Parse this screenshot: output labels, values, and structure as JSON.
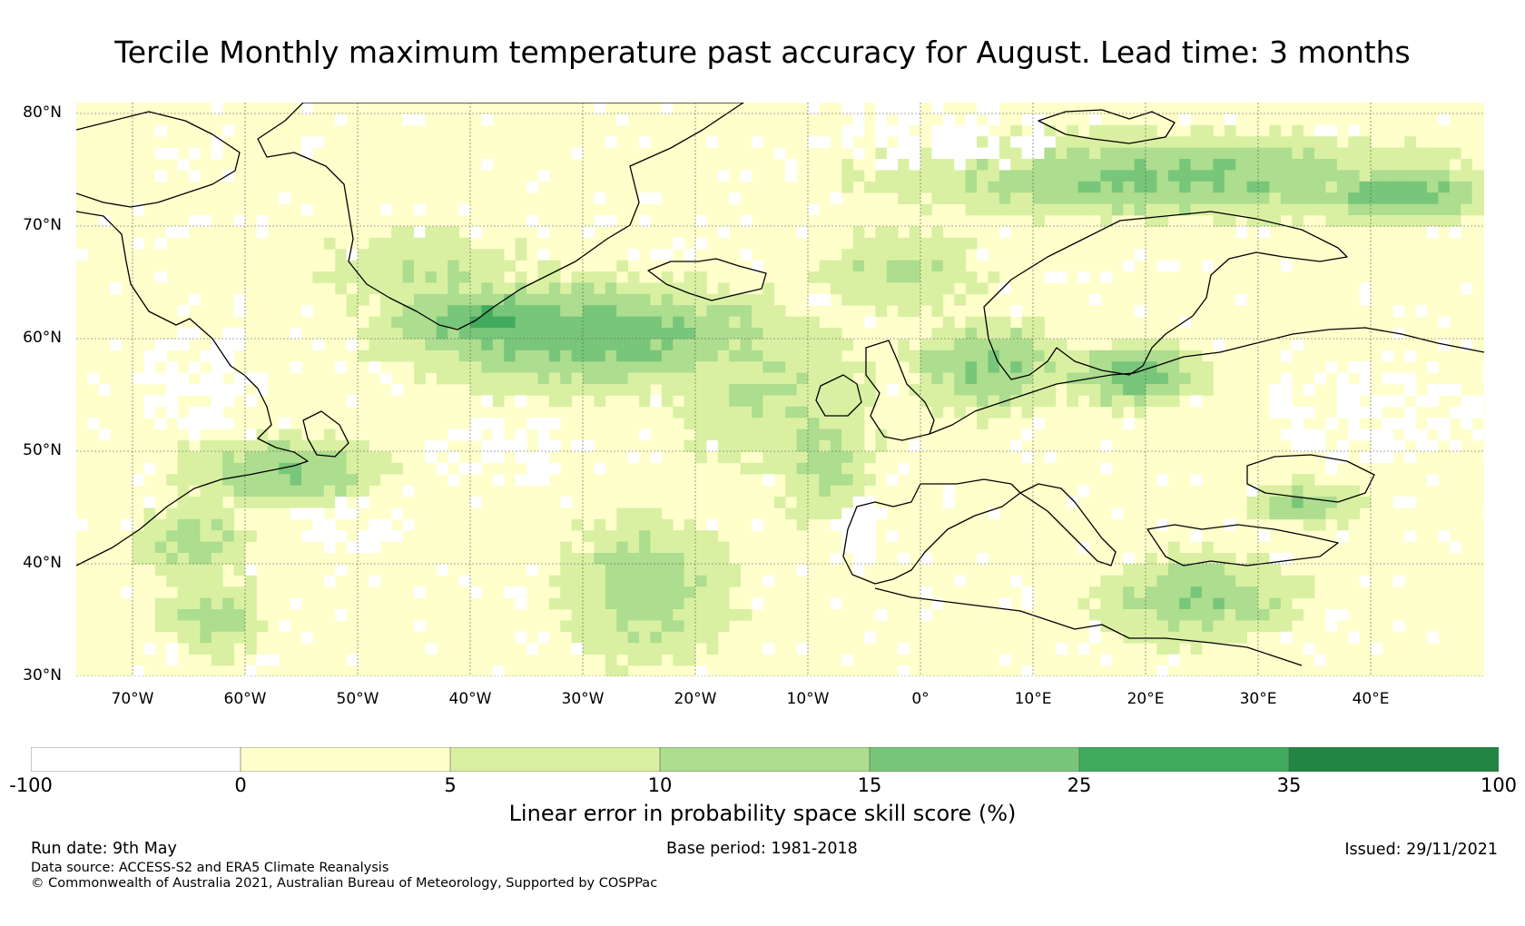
{
  "title": "Tercile Monthly maximum temperature past accuracy for August. Lead time: 3 months",
  "map": {
    "region": "North Atlantic and Europe",
    "lon_range": [
      -75,
      50
    ],
    "lat_range": [
      30,
      81
    ],
    "lat_labels": [
      "80°N",
      "70°N",
      "60°N",
      "50°N",
      "40°N",
      "30°N"
    ],
    "lon_labels": [
      "70°W",
      "60°W",
      "50°W",
      "40°W",
      "30°W",
      "20°W",
      "10°W",
      "0°",
      "10°E",
      "20°E",
      "30°E",
      "40°E"
    ],
    "gridlines": true,
    "coastlines": true
  },
  "colorbar": {
    "boundaries": [
      "-100",
      "0",
      "5",
      "10",
      "15",
      "25",
      "35",
      "100"
    ],
    "colors": [
      "#ffffff",
      "#ffffcc",
      "#d9f0a3",
      "#addd8e",
      "#78c679",
      "#41ab5d",
      "#238443"
    ],
    "label": "Linear error in probability space skill score (%)"
  },
  "footer": {
    "run_date": "Run date: 9th May",
    "base_period": "Base period: 1981-2018",
    "issued": "Issued: 29/11/2021",
    "data_source": "Data source: ACCESS-S2 and ERA5 Climate Reanalysis",
    "copyright": "© Commonwealth of Australia 2021, Australian Bureau of Meteorology, Supported by COSPPac"
  }
}
